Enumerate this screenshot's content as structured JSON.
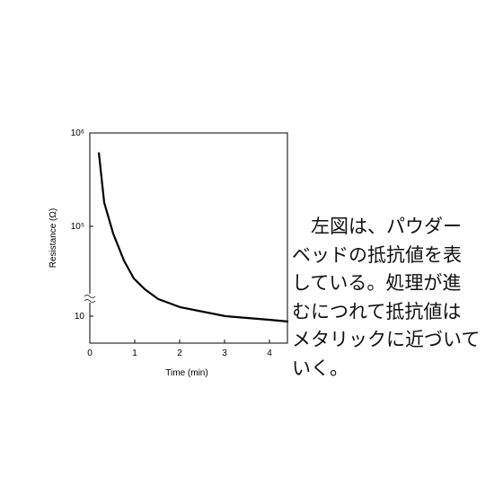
{
  "chart_data": {
    "type": "line",
    "y_label": "Resistance (Ω)",
    "x_label": "Time (min)",
    "log_scale_y": true,
    "axis_break_y": true,
    "x": [
      0.2,
      0.32,
      0.52,
      0.76,
      0.98,
      1.22,
      1.52,
      2.02,
      3.02,
      4.02,
      4.42
    ],
    "series": [
      {
        "color": "#000000",
        "values": [
          620000,
          180000,
          48000,
          3000,
          480,
          160,
          58,
          25,
          10,
          9.1,
          8.7
        ]
      }
    ],
    "xlim": [
      0,
      4.4
    ],
    "xticks": [
      0,
      1,
      2,
      3,
      4
    ],
    "ylim": [
      5,
      1000000
    ],
    "yticks": [
      10,
      {
        "value": 100000,
        "label": "10⁵"
      },
      {
        "value": 1000000,
        "label": "10⁶"
      }
    ]
  },
  "text": {
    "lines": [
      "　左図は、パウダー",
      "ベッドの抵抗値を表",
      "している。処理が進",
      "むにつれて抵抗値は",
      "メタリックに近づいて",
      "いく。"
    ]
  }
}
